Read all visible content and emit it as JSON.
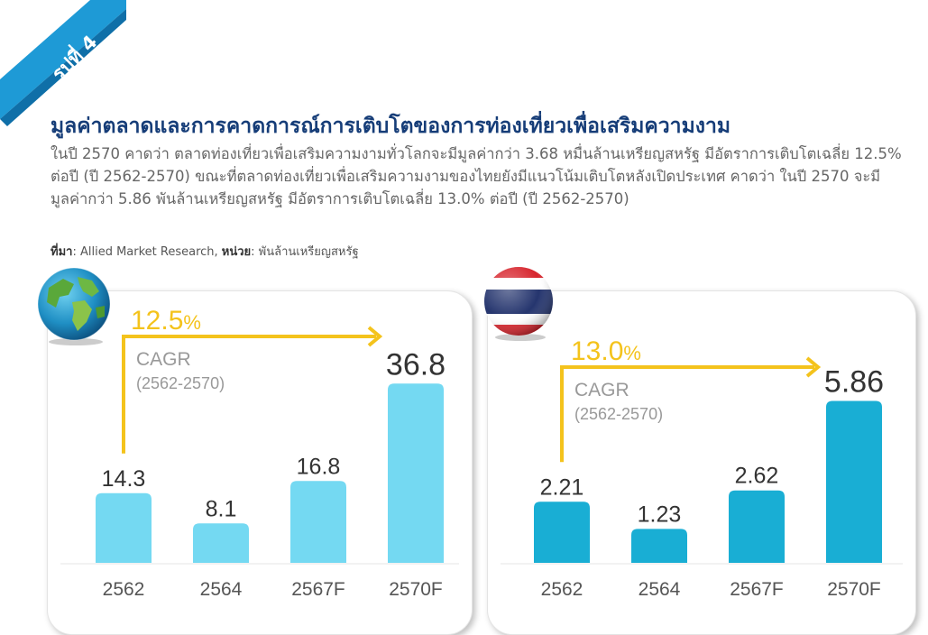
{
  "ribbon": {
    "label": "รูปที่ 4",
    "color": "#1e9ad6"
  },
  "title": "มูลค่าตลาดและการคาดการณ์การเติบโตของการท่องเที่ยวเพื่อเสริมความงาม",
  "description": "ในปี 2570 คาดว่า ตลาดท่องเที่ยวเพื่อเสริมความงามทั่วโลกจะมีมูลค่ากว่า 3.68 หมื่นล้านเหรียญสหรัฐ มีอัตราการเติบโตเฉลี่ย 12.5% ต่อปี (ปี 2562-2570) ขณะที่ตลาดท่องเที่ยวเพื่อเสริมความงามของไทยยังมีแนวโน้มเติบโตหลังเปิดประเทศ คาดว่า ในปี 2570 จะมีมูลค่ากว่า 5.86 พันล้านเหรียญสหรัฐ มีอัตราการเติบโตเฉลี่ย 13.0% ต่อปี (ปี 2562-2570)",
  "source": {
    "source_label": "ที่มา",
    "source_text": ": Allied Market Research, ",
    "unit_label": "หน่วย",
    "unit_text": ": พันล้านเหรียญสหรัฐ"
  },
  "colors": {
    "title": "#163d78",
    "bar_world": "#74d9f2",
    "bar_thailand": "#19aed4",
    "arrow": "#f4c31c",
    "text_dark": "#333333",
    "text_gray": "#999999"
  },
  "icons": {
    "world": "globe-icon",
    "thailand": "thai-flag-icon"
  },
  "chart_data": [
    {
      "type": "bar",
      "region": "world",
      "categories": [
        "2562",
        "2564",
        "2567F",
        "2570F"
      ],
      "values": [
        14.3,
        8.1,
        16.8,
        36.8
      ],
      "value_labels": [
        "14.3",
        "8.1",
        "16.8",
        "36.8"
      ],
      "cagr": {
        "number": "12.5",
        "percent": "%",
        "label": "CAGR",
        "period": "(2562-2570)"
      },
      "ylim": [
        0,
        40
      ],
      "grid": false
    },
    {
      "type": "bar",
      "region": "thailand",
      "categories": [
        "2562",
        "2564",
        "2567F",
        "2570F"
      ],
      "values": [
        2.21,
        1.23,
        2.62,
        5.86
      ],
      "value_labels": [
        "2.21",
        "1.23",
        "2.62",
        "5.86"
      ],
      "cagr": {
        "number": "13.0",
        "percent": "%",
        "label": "CAGR",
        "period": "(2562-2570)"
      },
      "ylim": [
        0,
        6.3
      ],
      "grid": false
    }
  ]
}
